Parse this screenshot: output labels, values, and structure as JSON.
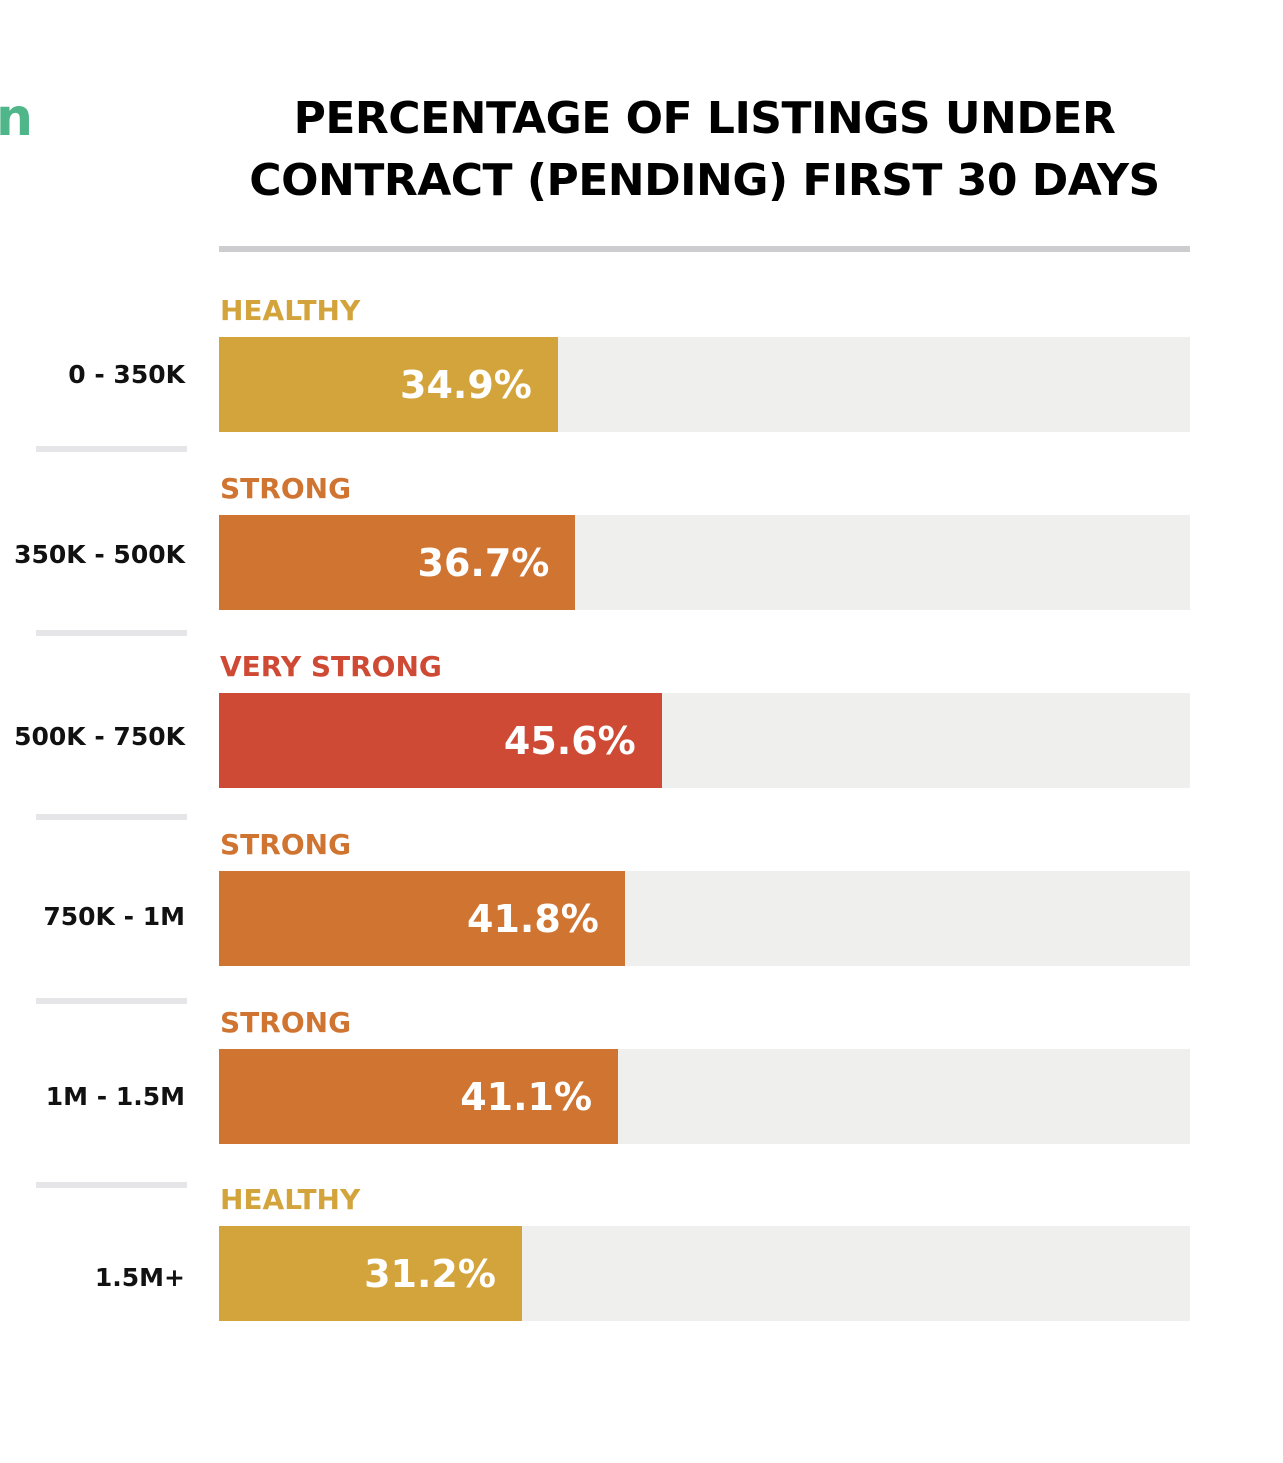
{
  "edge_fragment": "n",
  "colors": {
    "healthy": "#d4a43c",
    "strong": "#d07432",
    "very_strong": "#cf4a35",
    "track": "#efefed",
    "edge_fragment": "#4fb68a"
  },
  "chart_data": {
    "type": "bar",
    "orientation": "horizontal",
    "title": "PERCENTAGE OF LISTINGS UNDER CONTRACT (PENDING) FIRST 30 DAYS",
    "title_lines": [
      "PERCENTAGE OF LISTINGS UNDER",
      "CONTRACT (PENDING) FIRST 30 DAYS"
    ],
    "xlim": [
      0,
      100
    ],
    "unit": "%",
    "categories": [
      "0 - 350K",
      "350K - 500K",
      "500K - 750K",
      "750K - 1M",
      "1M - 1.5M",
      "1.5M+"
    ],
    "values": [
      34.9,
      36.7,
      45.6,
      41.8,
      41.1,
      31.2
    ],
    "value_labels": [
      "34.9%",
      "36.7%",
      "45.6%",
      "41.8%",
      "41.1%",
      "31.2%"
    ],
    "statuses": [
      "HEALTHY",
      "STRONG",
      "VERY STRONG",
      "STRONG",
      "STRONG",
      "HEALTHY"
    ],
    "status_colors": [
      "#d4a43c",
      "#d07432",
      "#cf4a35",
      "#d07432",
      "#d07432",
      "#d4a43c"
    ]
  }
}
